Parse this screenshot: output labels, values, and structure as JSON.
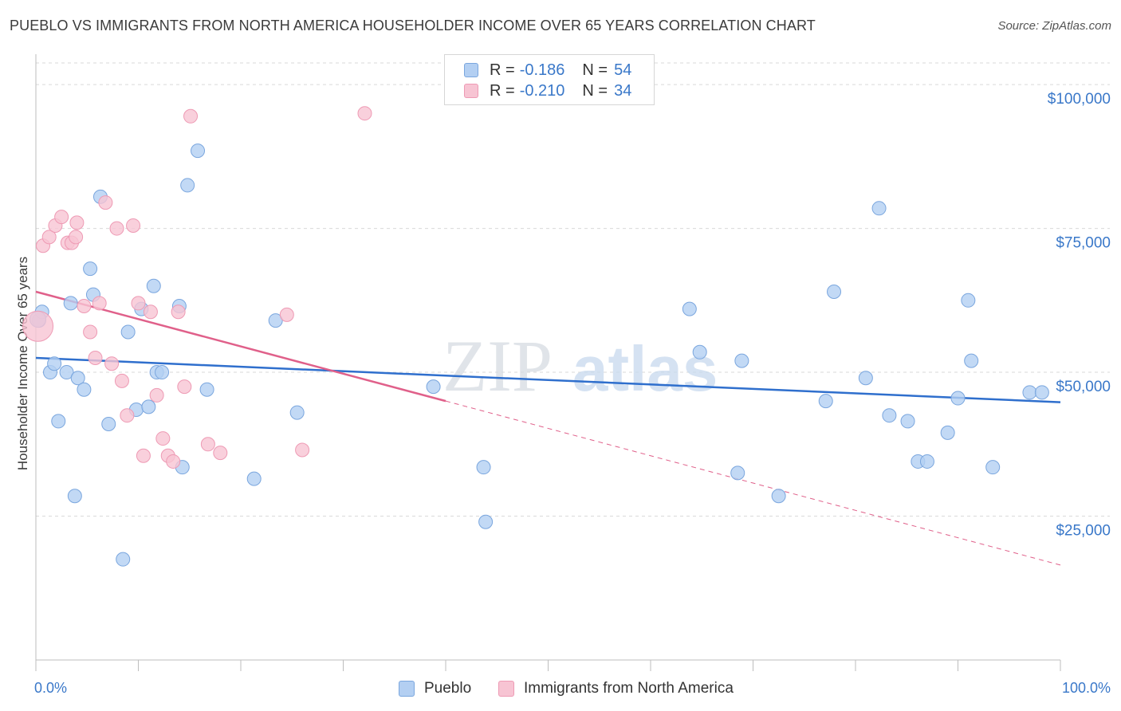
{
  "title": "PUEBLO VS IMMIGRANTS FROM NORTH AMERICA HOUSEHOLDER INCOME OVER 65 YEARS CORRELATION CHART",
  "source": "Source: ZipAtlas.com",
  "watermark": {
    "zip": "ZIP",
    "atlas": "atlas"
  },
  "colors": {
    "blue_fill": "#b3cff2",
    "blue_stroke": "#7aa6de",
    "blue_line": "#2f6fcd",
    "pink_fill": "#f7c4d3",
    "pink_stroke": "#ee9ab4",
    "pink_line": "#e0608a",
    "axis_text": "#3a78c9",
    "grid": "#d9d9d9"
  },
  "legend": {
    "rows": [
      {
        "r_label": "R =",
        "r_value": "-0.186",
        "n_label": "N =",
        "n_value": "54"
      },
      {
        "r_label": "R =",
        "r_value": "-0.210",
        "n_label": "N =",
        "n_value": "34"
      }
    ],
    "series": [
      "Pueblo",
      "Immigrants from North America"
    ]
  },
  "chart_data": {
    "type": "scatter",
    "title": "PUEBLO VS IMMIGRANTS FROM NORTH AMERICA HOUSEHOLDER INCOME OVER 65 YEARS CORRELATION CHART",
    "xlabel": "",
    "ylabel": "Householder Income Over 65 years",
    "xlim": [
      0,
      100
    ],
    "ylim": [
      0,
      105000
    ],
    "x_tick_labels": [
      "0.0%",
      "100.0%"
    ],
    "y_ticks": [
      25000,
      50000,
      75000,
      100000
    ],
    "y_tick_labels": [
      "$25,000",
      "$50,000",
      "$75,000",
      "$100,000"
    ],
    "grid": true,
    "legend_position": "top-center",
    "series": [
      {
        "name": "Pueblo",
        "color": "#b3cff2",
        "points": [
          [
            0.3,
            59000
          ],
          [
            0.6,
            60500
          ],
          [
            1.4,
            50000
          ],
          [
            1.8,
            51500
          ],
          [
            2.2,
            41500
          ],
          [
            3.0,
            50000
          ],
          [
            3.4,
            62000
          ],
          [
            3.8,
            28500
          ],
          [
            4.1,
            49000
          ],
          [
            4.7,
            47000
          ],
          [
            5.3,
            68000
          ],
          [
            5.6,
            63500
          ],
          [
            6.3,
            80500
          ],
          [
            7.1,
            41000
          ],
          [
            8.5,
            17500
          ],
          [
            9.0,
            57000
          ],
          [
            9.8,
            43500
          ],
          [
            10.3,
            61000
          ],
          [
            11.0,
            44000
          ],
          [
            11.5,
            65000
          ],
          [
            11.8,
            50000
          ],
          [
            12.3,
            50000
          ],
          [
            14.0,
            61500
          ],
          [
            14.3,
            33500
          ],
          [
            14.8,
            82500
          ],
          [
            15.8,
            88500
          ],
          [
            16.7,
            47000
          ],
          [
            21.3,
            31500
          ],
          [
            23.4,
            59000
          ],
          [
            25.5,
            43000
          ],
          [
            38.8,
            47500
          ],
          [
            43.7,
            33500
          ],
          [
            43.9,
            24000
          ],
          [
            63.8,
            61000
          ],
          [
            64.8,
            53500
          ],
          [
            68.5,
            32500
          ],
          [
            68.9,
            52000
          ],
          [
            72.5,
            28500
          ],
          [
            77.1,
            45000
          ],
          [
            77.9,
            64000
          ],
          [
            81.0,
            49000
          ],
          [
            82.3,
            78500
          ],
          [
            83.3,
            42500
          ],
          [
            85.1,
            41500
          ],
          [
            86.1,
            34500
          ],
          [
            87.0,
            34500
          ],
          [
            89.0,
            39500
          ],
          [
            90.0,
            45500
          ],
          [
            91.0,
            62500
          ],
          [
            91.3,
            52000
          ],
          [
            93.4,
            33500
          ],
          [
            97.0,
            46500
          ],
          [
            98.2,
            46500
          ],
          [
            0.2,
            59200
          ]
        ]
      },
      {
        "name": "Immigrants from North America",
        "color": "#f7c4d3",
        "points": [
          [
            0.2,
            58000
          ],
          [
            0.7,
            72000
          ],
          [
            1.3,
            73500
          ],
          [
            1.9,
            75500
          ],
          [
            2.5,
            77000
          ],
          [
            3.1,
            72500
          ],
          [
            3.5,
            72500
          ],
          [
            4.0,
            76000
          ],
          [
            3.9,
            73500
          ],
          [
            4.7,
            61500
          ],
          [
            5.3,
            57000
          ],
          [
            5.8,
            52500
          ],
          [
            6.2,
            62000
          ],
          [
            6.8,
            79500
          ],
          [
            7.4,
            51500
          ],
          [
            7.9,
            75000
          ],
          [
            8.4,
            48500
          ],
          [
            8.9,
            42500
          ],
          [
            9.5,
            75500
          ],
          [
            10.0,
            62000
          ],
          [
            10.5,
            35500
          ],
          [
            11.2,
            60500
          ],
          [
            11.8,
            46000
          ],
          [
            12.4,
            38500
          ],
          [
            12.9,
            35500
          ],
          [
            13.4,
            34500
          ],
          [
            13.9,
            60500
          ],
          [
            14.5,
            47500
          ],
          [
            15.1,
            94500
          ],
          [
            16.8,
            37500
          ],
          [
            18.0,
            36000
          ],
          [
            24.5,
            60000
          ],
          [
            26.0,
            36500
          ],
          [
            32.1,
            95000
          ]
        ]
      }
    ],
    "trendlines": [
      {
        "series": "Pueblo",
        "x": [
          0,
          100
        ],
        "y": [
          52500,
          44800
        ],
        "style": "solid"
      },
      {
        "series": "Immigrants from North America",
        "x": [
          0,
          40
        ],
        "y": [
          64000,
          45000
        ],
        "style": "solid"
      },
      {
        "series": "Immigrants from North America",
        "x": [
          40,
          100
        ],
        "y": [
          45000,
          16500
        ],
        "style": "dashed"
      }
    ]
  }
}
